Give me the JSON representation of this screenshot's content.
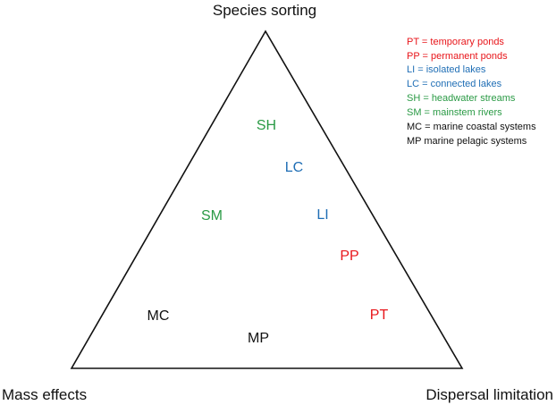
{
  "colors": {
    "red": "#e8161b",
    "blue": "#1f6eb5",
    "green": "#2a9a45",
    "black": "#111111"
  },
  "corners": {
    "top": "Species sorting",
    "bottom_left": "Mass effects",
    "bottom_right": "Dispersal limitation"
  },
  "systems": {
    "SH": {
      "label": "SH",
      "color": "green"
    },
    "LC": {
      "label": "LC",
      "color": "blue"
    },
    "SM": {
      "label": "SM",
      "color": "green"
    },
    "LI": {
      "label": "LI",
      "color": "blue"
    },
    "PP": {
      "label": "PP",
      "color": "red"
    },
    "MC": {
      "label": "MC",
      "color": "black"
    },
    "PT": {
      "label": "PT",
      "color": "red"
    },
    "MP": {
      "label": "MP",
      "color": "black"
    }
  },
  "legend": [
    {
      "text": "PT = temporary ponds",
      "color": "red"
    },
    {
      "text": "PP = permanent ponds",
      "color": "red"
    },
    {
      "text": "LI = isolated lakes",
      "color": "blue"
    },
    {
      "text": "LC = connected lakes",
      "color": "blue"
    },
    {
      "text": "SH = headwater streams",
      "color": "green"
    },
    {
      "text": "SM = mainstem rivers",
      "color": "green"
    },
    {
      "text": "MC = marine coastal systems",
      "color": "black"
    },
    {
      "text": "MP marine pelagic systems",
      "color": "black"
    }
  ]
}
